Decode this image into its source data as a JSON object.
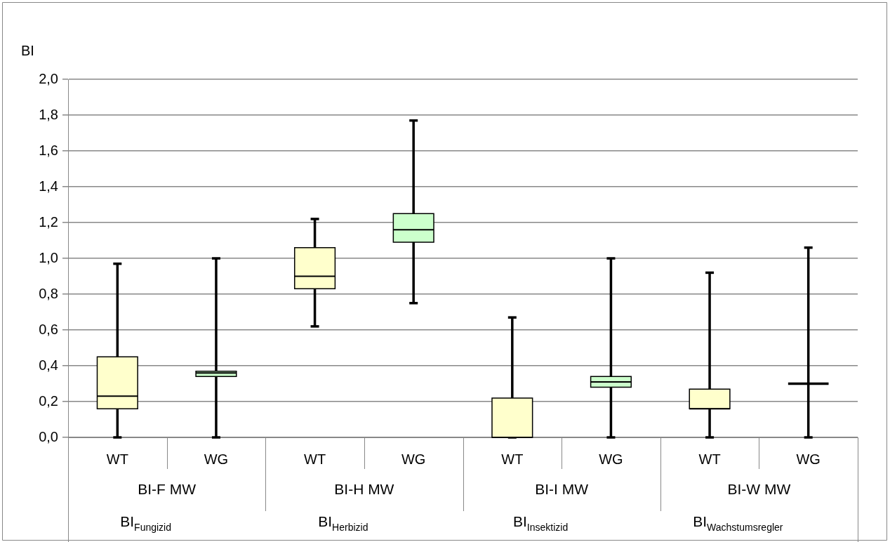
{
  "chart_data": {
    "type": "box",
    "ylabel": "BI",
    "categories": [
      "WT",
      "WG",
      "WT",
      "WG",
      "WT",
      "WG",
      "WT",
      "WG"
    ],
    "colors": [
      "#ffffcc",
      "#ccffcc",
      "#ffffcc",
      "#ccffcc",
      "#ffffcc",
      "#ccffcc",
      "#ffffcc",
      "#000000"
    ],
    "boxes": [
      {
        "low": 0,
        "q1": 0.16,
        "median": 0.23,
        "q3": 0.45,
        "high": 0.97
      },
      {
        "low": 0,
        "q1": 0.34,
        "median": 0.36,
        "q3": 0.37,
        "high": 1.0
      },
      {
        "low": 0.62,
        "q1": 0.83,
        "median": 0.9,
        "q3": 1.06,
        "high": 1.22
      },
      {
        "low": 0.75,
        "q1": 1.09,
        "median": 1.16,
        "q3": 1.25,
        "high": 1.77
      },
      {
        "low": 0,
        "q1": 0,
        "median": 0,
        "q3": 0.22,
        "high": 0.67
      },
      {
        "low": 0,
        "q1": 0.28,
        "median": 0.31,
        "q3": 0.34,
        "high": 1.0
      },
      {
        "low": 0,
        "q1": 0.16,
        "median": 0.16,
        "q3": 0.27,
        "high": 0.92
      },
      {
        "low": 0,
        "q1": 0.3,
        "median": 0.3,
        "q3": 0.3,
        "high": 1.06
      }
    ],
    "ylim": [
      0,
      2
    ],
    "yticks": [
      {
        "value": 0,
        "label": "0,0"
      },
      {
        "value": 0.2,
        "label": "0,2"
      },
      {
        "value": 0.4,
        "label": "0,4"
      },
      {
        "value": 0.6,
        "label": "0,6"
      },
      {
        "value": 0.8,
        "label": "0,8"
      },
      {
        "value": 1.0,
        "label": "1,0"
      },
      {
        "value": 1.2,
        "label": "1,2"
      },
      {
        "value": 1.4,
        "label": "1,4"
      },
      {
        "value": 1.6,
        "label": "1,6"
      },
      {
        "value": 1.8,
        "label": "1,8"
      },
      {
        "value": 2.0,
        "label": "2,0"
      }
    ],
    "grid": "y",
    "annotations": [
      "BI-F MW",
      "BI-H MW",
      "BI-I MW",
      "BI-W MW",
      "BI$_{Fungizid}$",
      "BI$_{Herbizid}$",
      "BI$_{Insektizid}$",
      "BI$_{Wachstumsregler}$"
    ]
  }
}
